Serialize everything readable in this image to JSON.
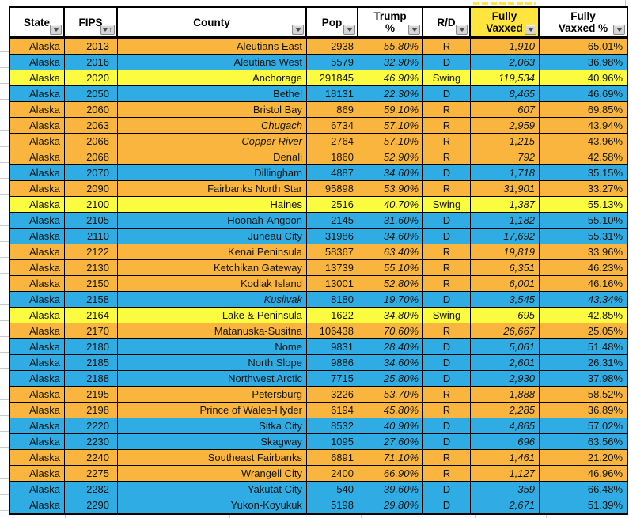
{
  "colors": {
    "republican_row": "#FAB53E",
    "democrat_row": "#2FACE3",
    "swing_row": "#FBFB3F",
    "vaxxed_header_highlight": "#FFE53E",
    "grid_line": "#C9C9C9",
    "table_border": "#000000"
  },
  "table": {
    "columns": [
      {
        "id": "state",
        "label": "State",
        "filter_icon": "dropdown"
      },
      {
        "id": "fips",
        "label": "FIPS",
        "filter_icon": "dropdown-sorted-ascending"
      },
      {
        "id": "county",
        "label": "County",
        "filter_icon": "dropdown"
      },
      {
        "id": "pop",
        "label": "Pop",
        "filter_icon": "dropdown"
      },
      {
        "id": "trump_pct",
        "label": "Trump\n%",
        "filter_icon": "dropdown"
      },
      {
        "id": "rd",
        "label": "R/D",
        "filter_icon": "dropdown"
      },
      {
        "id": "fully_vaxxed",
        "label": "Fully\nVaxxed",
        "filter_icon": "dropdown",
        "highlighted": true
      },
      {
        "id": "fully_vaxxed_pct",
        "label": "Fully\nVaxxed %",
        "filter_icon": "dropdown"
      }
    ],
    "rows": [
      {
        "state": "Alaska",
        "fips": "2013",
        "county": "Aleutians East",
        "pop": "2938",
        "trump": "55.80%",
        "rd": "R",
        "vaxxed": "1,910",
        "vaxxed_pct": "65.01%"
      },
      {
        "state": "Alaska",
        "fips": "2016",
        "county": "Aleutians West",
        "pop": "5579",
        "trump": "32.90%",
        "rd": "D",
        "vaxxed": "2,063",
        "vaxxed_pct": "36.98%"
      },
      {
        "state": "Alaska",
        "fips": "2020",
        "county": "Anchorage",
        "pop": "291845",
        "trump": "46.90%",
        "rd": "Swing",
        "vaxxed": "119,534",
        "vaxxed_pct": "40.96%"
      },
      {
        "state": "Alaska",
        "fips": "2050",
        "county": "Bethel",
        "pop": "18131",
        "trump": "22.30%",
        "rd": "D",
        "vaxxed": "8,465",
        "vaxxed_pct": "46.69%"
      },
      {
        "state": "Alaska",
        "fips": "2060",
        "county": "Bristol Bay",
        "pop": "869",
        "trump": "59.10%",
        "rd": "R",
        "vaxxed": "607",
        "vaxxed_pct": "69.85%"
      },
      {
        "state": "Alaska",
        "fips": "2063",
        "county": "Chugach",
        "county_italic": true,
        "pop": "6734",
        "trump": "57.10%",
        "rd": "R",
        "vaxxed": "2,959",
        "vaxxed_pct": "43.94%"
      },
      {
        "state": "Alaska",
        "fips": "2066",
        "county": "Copper River",
        "county_italic": true,
        "pop": "2764",
        "trump": "57.10%",
        "rd": "R",
        "vaxxed": "1,215",
        "vaxxed_pct": "43.96%"
      },
      {
        "state": "Alaska",
        "fips": "2068",
        "county": "Denali",
        "pop": "1860",
        "trump": "52.90%",
        "rd": "R",
        "vaxxed": "792",
        "vaxxed_pct": "42.58%"
      },
      {
        "state": "Alaska",
        "fips": "2070",
        "county": "Dillingham",
        "pop": "4887",
        "trump": "34.60%",
        "rd": "D",
        "vaxxed": "1,718",
        "vaxxed_pct": "35.15%"
      },
      {
        "state": "Alaska",
        "fips": "2090",
        "county": "Fairbanks North Star",
        "pop": "95898",
        "trump": "53.90%",
        "rd": "R",
        "vaxxed": "31,901",
        "vaxxed_pct": "33.27%"
      },
      {
        "state": "Alaska",
        "fips": "2100",
        "county": "Haines",
        "pop": "2516",
        "trump": "40.70%",
        "rd": "Swing",
        "vaxxed": "1,387",
        "vaxxed_pct": "55.13%"
      },
      {
        "state": "Alaska",
        "fips": "2105",
        "county": "Hoonah-Angoon",
        "pop": "2145",
        "trump": "31.60%",
        "rd": "D",
        "vaxxed": "1,182",
        "vaxxed_pct": "55.10%"
      },
      {
        "state": "Alaska",
        "fips": "2110",
        "county": "Juneau City",
        "pop": "31986",
        "trump": "34.60%",
        "rd": "D",
        "vaxxed": "17,692",
        "vaxxed_pct": "55.31%"
      },
      {
        "state": "Alaska",
        "fips": "2122",
        "county": "Kenai Peninsula",
        "pop": "58367",
        "trump": "63.40%",
        "rd": "R",
        "vaxxed": "19,819",
        "vaxxed_pct": "33.96%"
      },
      {
        "state": "Alaska",
        "fips": "2130",
        "county": "Ketchikan Gateway",
        "pop": "13739",
        "trump": "55.10%",
        "rd": "R",
        "vaxxed": "6,351",
        "vaxxed_pct": "46.23%"
      },
      {
        "state": "Alaska",
        "fips": "2150",
        "county": "Kodiak Island",
        "pop": "13001",
        "trump": "52.80%",
        "rd": "R",
        "vaxxed": "6,001",
        "vaxxed_pct": "46.16%"
      },
      {
        "state": "Alaska",
        "fips": "2158",
        "county": "Kusilvak",
        "county_italic": true,
        "pop": "8180",
        "trump": "19.70%",
        "rd": "D",
        "vaxxed": "3,545",
        "vaxxed_pct": "43.34%",
        "vaxxed_pct_italic": true
      },
      {
        "state": "Alaska",
        "fips": "2164",
        "county": "Lake & Peninsula",
        "pop": "1622",
        "trump": "34.80%",
        "rd": "Swing",
        "vaxxed": "695",
        "vaxxed_pct": "42.85%"
      },
      {
        "state": "Alaska",
        "fips": "2170",
        "county": "Matanuska-Susitna",
        "pop": "106438",
        "trump": "70.60%",
        "rd": "R",
        "vaxxed": "26,667",
        "vaxxed_pct": "25.05%"
      },
      {
        "state": "Alaska",
        "fips": "2180",
        "county": "Nome",
        "pop": "9831",
        "trump": "28.40%",
        "rd": "D",
        "vaxxed": "5,061",
        "vaxxed_pct": "51.48%"
      },
      {
        "state": "Alaska",
        "fips": "2185",
        "county": "North Slope",
        "pop": "9886",
        "trump": "34.60%",
        "rd": "D",
        "vaxxed": "2,601",
        "vaxxed_pct": "26.31%"
      },
      {
        "state": "Alaska",
        "fips": "2188",
        "county": "Northwest Arctic",
        "pop": "7715",
        "trump": "25.80%",
        "rd": "D",
        "vaxxed": "2,930",
        "vaxxed_pct": "37.98%"
      },
      {
        "state": "Alaska",
        "fips": "2195",
        "county": "Petersburg",
        "pop": "3226",
        "trump": "53.70%",
        "rd": "R",
        "vaxxed": "1,888",
        "vaxxed_pct": "58.52%"
      },
      {
        "state": "Alaska",
        "fips": "2198",
        "county": "Prince of Wales-Hyder",
        "pop": "6194",
        "trump": "45.80%",
        "rd": "R",
        "vaxxed": "2,285",
        "vaxxed_pct": "36.89%"
      },
      {
        "state": "Alaska",
        "fips": "2220",
        "county": "Sitka City",
        "pop": "8532",
        "trump": "40.90%",
        "rd": "D",
        "vaxxed": "4,865",
        "vaxxed_pct": "57.02%"
      },
      {
        "state": "Alaska",
        "fips": "2230",
        "county": "Skagway",
        "pop": "1095",
        "trump": "27.60%",
        "rd": "D",
        "vaxxed": "696",
        "vaxxed_pct": "63.56%"
      },
      {
        "state": "Alaska",
        "fips": "2240",
        "county": "Southeast Fairbanks",
        "pop": "6891",
        "trump": "71.10%",
        "rd": "R",
        "vaxxed": "1,461",
        "vaxxed_pct": "21.20%"
      },
      {
        "state": "Alaska",
        "fips": "2275",
        "county": "Wrangell City",
        "pop": "2400",
        "trump": "66.90%",
        "rd": "R",
        "vaxxed": "1,127",
        "vaxxed_pct": "46.96%"
      },
      {
        "state": "Alaska",
        "fips": "2282",
        "county": "Yakutat City",
        "pop": "540",
        "trump": "39.60%",
        "rd": "D",
        "vaxxed": "359",
        "vaxxed_pct": "66.48%"
      },
      {
        "state": "Alaska",
        "fips": "2290",
        "county": "Yukon-Koyukuk",
        "pop": "5198",
        "trump": "29.80%",
        "rd": "D",
        "vaxxed": "2,671",
        "vaxxed_pct": "51.39%"
      }
    ]
  }
}
